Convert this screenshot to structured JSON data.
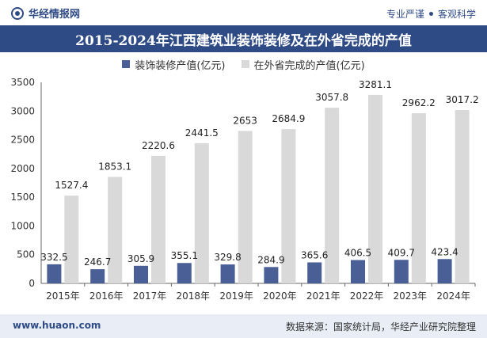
{
  "header": {
    "logo_text": "华经情报网",
    "slogan_left": "专业严谨",
    "slogan_right": "客观科学"
  },
  "footer": {
    "website": "www.huaon.com",
    "source": "数据来源：国家统计局，华经产业研究院整理"
  },
  "colors": {
    "series1": "#4a5f96",
    "series2": "#d9d9d9",
    "brand": "#2f4b86"
  },
  "chart_data": {
    "type": "bar",
    "title": "2015-2024年江西建筑业装饰装修及在外省完成的产值",
    "categories": [
      "2015年",
      "2016年",
      "2017年",
      "2018年",
      "2019年",
      "2020年",
      "2021年",
      "2022年",
      "2023年",
      "2024年"
    ],
    "series": [
      {
        "name": "装饰装修产值(亿元)",
        "values": [
          332.5,
          246.7,
          305.9,
          355.1,
          329.8,
          284.9,
          365.6,
          406.5,
          409.7,
          423.4
        ]
      },
      {
        "name": "在外省完成的产值(亿元)",
        "values": [
          1527.4,
          1853.1,
          2220.6,
          2441.5,
          2653,
          2684.9,
          3057.8,
          3281.1,
          2962.2,
          3017.2
        ]
      }
    ],
    "yticks": [
      "0",
      "500",
      "1000",
      "1500",
      "2000",
      "2500",
      "3000",
      "3500"
    ],
    "ylim": [
      0,
      3500
    ],
    "legend_position": "top-center",
    "grid": false
  }
}
